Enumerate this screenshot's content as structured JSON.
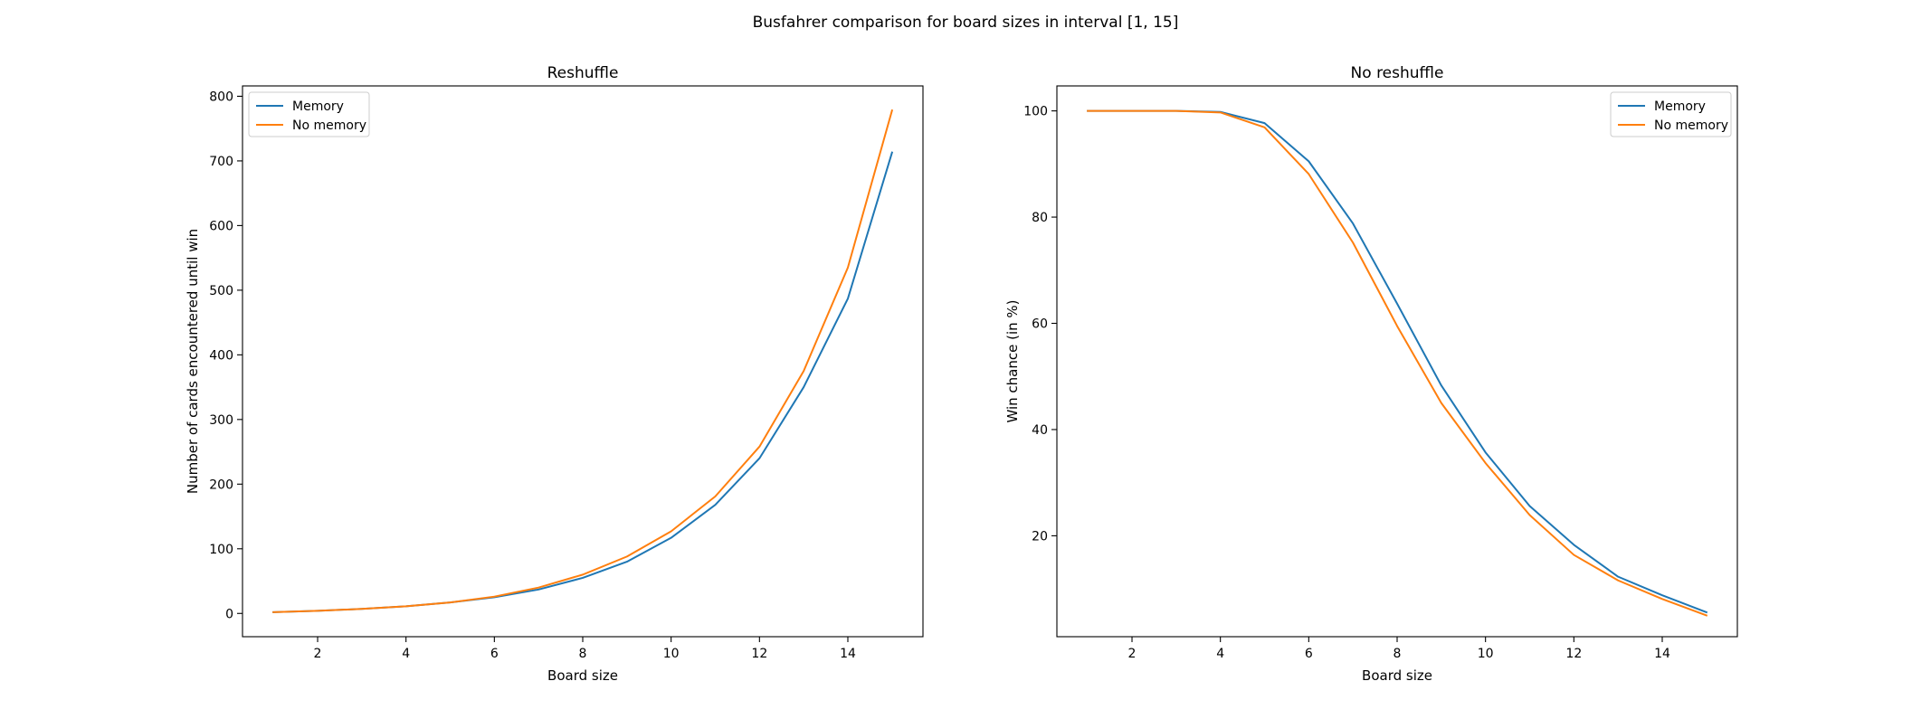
{
  "figure": {
    "title": "Busfahrer comparison for board sizes in interval [1, 15]"
  },
  "colors": {
    "memory": "#1f77b4",
    "no_memory": "#ff7f0e"
  },
  "chart_data": [
    {
      "type": "line",
      "title": "Reshuffle",
      "xlabel": "Board size",
      "ylabel": "Number of cards encountered until win",
      "x": [
        1,
        2,
        3,
        4,
        5,
        6,
        7,
        8,
        9,
        10,
        11,
        12,
        13,
        14,
        15
      ],
      "xlim": [
        0.3,
        15.7
      ],
      "ylim": [
        -36,
        816
      ],
      "xticks": [
        2,
        4,
        6,
        8,
        10,
        12,
        14
      ],
      "yticks": [
        0,
        100,
        200,
        300,
        400,
        500,
        600,
        700,
        800
      ],
      "xtick_labels": [
        "2",
        "4",
        "6",
        "8",
        "10",
        "12",
        "14"
      ],
      "ytick_labels": [
        "0",
        "100",
        "200",
        "300",
        "400",
        "500",
        "600",
        "700",
        "800"
      ],
      "grid": false,
      "legend_position": "upper-left",
      "series": [
        {
          "name": "Memory",
          "color": "#1f77b4",
          "values": [
            2,
            4,
            7,
            11,
            17,
            25,
            37,
            55,
            80,
            117,
            168,
            240,
            350,
            487,
            713
          ]
        },
        {
          "name": "No memory",
          "color": "#ff7f0e",
          "values": [
            2,
            4,
            7,
            11,
            17,
            26,
            40,
            60,
            88,
            127,
            181,
            258,
            375,
            535,
            778
          ]
        }
      ]
    },
    {
      "type": "line",
      "title": "No reshuffle",
      "xlabel": "Board size",
      "ylabel": "Win chance (in %)",
      "x": [
        1,
        2,
        3,
        4,
        5,
        6,
        7,
        8,
        9,
        10,
        11,
        12,
        13,
        14,
        15
      ],
      "xlim": [
        0.3,
        15.7
      ],
      "ylim": [
        1,
        104.7
      ],
      "xticks": [
        2,
        4,
        6,
        8,
        10,
        12,
        14
      ],
      "yticks": [
        20,
        40,
        60,
        80,
        100
      ],
      "xtick_labels": [
        "2",
        "4",
        "6",
        "8",
        "10",
        "12",
        "14"
      ],
      "ytick_labels": [
        "20",
        "40",
        "60",
        "80",
        "100"
      ],
      "grid": false,
      "legend_position": "upper-right",
      "series": [
        {
          "name": "Memory",
          "color": "#1f77b4",
          "values": [
            100,
            100,
            100,
            99.8,
            97.7,
            90.5,
            78.8,
            63.7,
            48.3,
            35.7,
            25.6,
            18.3,
            12.3,
            8.8,
            5.6
          ]
        },
        {
          "name": "No memory",
          "color": "#ff7f0e",
          "values": [
            100,
            100,
            100,
            99.7,
            96.9,
            88.1,
            75.2,
            59.5,
            45.0,
            33.7,
            23.9,
            16.4,
            11.6,
            8.1,
            5.0
          ]
        }
      ]
    }
  ]
}
